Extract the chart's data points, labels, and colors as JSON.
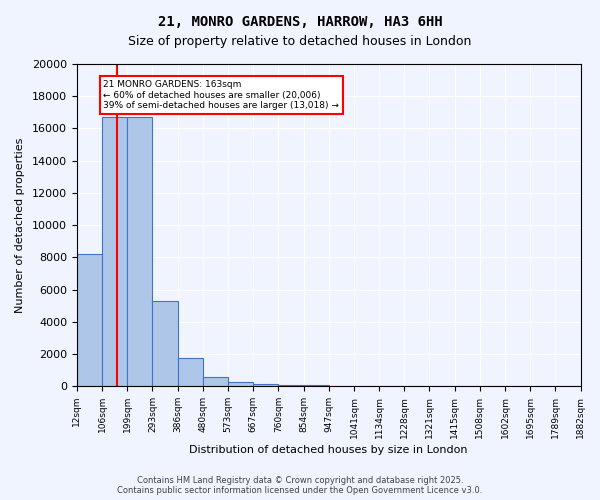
{
  "title": "21, MONRO GARDENS, HARROW, HA3 6HH",
  "subtitle": "Size of property relative to detached houses in London",
  "xlabel": "Distribution of detached houses by size in London",
  "ylabel": "Number of detached properties",
  "bar_color": "#aec6e8",
  "bar_edge_color": "#4472c4",
  "property_line_color": "red",
  "property_size": 163,
  "annotation_text": "21 MONRO GARDENS: 163sqm\n← 60% of detached houses are smaller (20,006)\n39% of semi-detached houses are larger (13,018) →",
  "annotation_box_color": "red",
  "annotation_text_color": "black",
  "footer_text": "Contains HM Land Registry data © Crown copyright and database right 2025.\nContains public sector information licensed under the Open Government Licence v3.0.",
  "bin_edges": [
    12,
    106,
    199,
    293,
    386,
    480,
    573,
    667,
    760,
    854,
    947,
    1041,
    1134,
    1228,
    1321,
    1415,
    1508,
    1602,
    1695,
    1789,
    1882
  ],
  "bin_labels": [
    "12sqm",
    "106sqm",
    "199sqm",
    "293sqm",
    "386sqm",
    "480sqm",
    "573sqm",
    "667sqm",
    "760sqm",
    "854sqm",
    "947sqm",
    "1041sqm",
    "1134sqm",
    "1228sqm",
    "1321sqm",
    "1415sqm",
    "1508sqm",
    "1602sqm",
    "1695sqm",
    "1789sqm",
    "1882sqm"
  ],
  "counts": [
    8200,
    16700,
    16700,
    5300,
    1750,
    600,
    290,
    130,
    80,
    50,
    35,
    25,
    18,
    14,
    10,
    8,
    6,
    4,
    3,
    2
  ],
  "ylim": [
    0,
    20000
  ],
  "yticks": [
    0,
    2000,
    4000,
    6000,
    8000,
    10000,
    12000,
    14000,
    16000,
    18000,
    20000
  ],
  "background_color": "#f0f4ff"
}
